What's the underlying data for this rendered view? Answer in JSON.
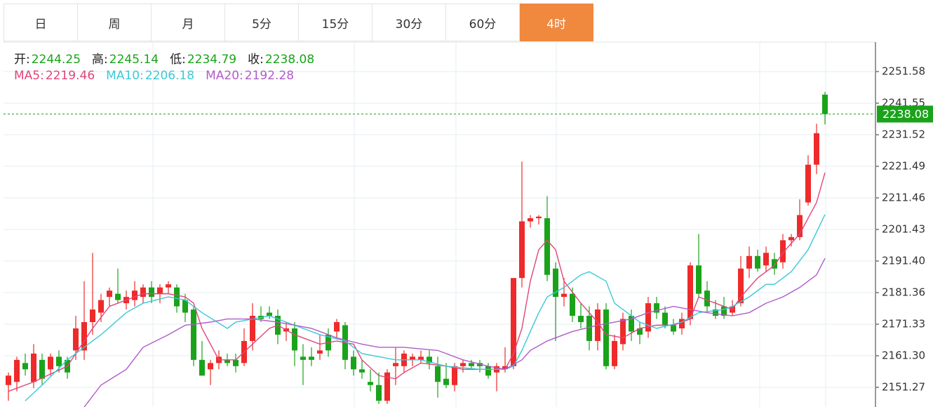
{
  "tabs": [
    "日",
    "周",
    "月",
    "5分",
    "15分",
    "30分",
    "60分",
    "4时"
  ],
  "active_tab": 7,
  "ohlc_labels": [
    "开:",
    "高:",
    "低:",
    "收:"
  ],
  "chart_data": {
    "type": "candlestick",
    "up_color": "#ee2a2a",
    "down_color": "#1aa31a",
    "grid": true,
    "ylim": [
      2145.03,
      2260.94
    ],
    "yticks": [
      2251.58,
      2241.55,
      2231.52,
      2221.49,
      2211.46,
      2201.43,
      {
        "value": 2191.4,
        "label": "2191.40"
      },
      2181.36,
      2171.33,
      {
        "value": 2161.3,
        "label": "2161.30"
      },
      2151.27
    ],
    "candles": [
      [
        2152,
        2156,
        2147,
        2155
      ],
      [
        2153,
        2161,
        2150,
        2160
      ],
      [
        2159,
        2162,
        2155,
        2157
      ],
      [
        2153,
        2165,
        2151,
        2162
      ],
      [
        2160,
        2162,
        2152,
        2154
      ],
      [
        2157,
        2162,
        2155,
        2161
      ],
      [
        2161,
        2163,
        2156,
        2158
      ],
      [
        2160,
        2161,
        2154,
        2156
      ],
      [
        2163,
        2174,
        2160,
        2170
      ],
      [
        2163,
        2185,
        2160,
        2172
      ],
      [
        2172,
        2194,
        2168,
        2176
      ],
      [
        2175,
        2181,
        2172,
        2179
      ],
      [
        2180,
        2183,
        2177,
        2182
      ],
      [
        2181,
        2189,
        2178,
        2179
      ],
      [
        2178,
        2182,
        2176,
        2180
      ],
      [
        2179,
        2185,
        2177,
        2182
      ],
      [
        2180,
        2184,
        2178,
        2183
      ],
      [
        2183,
        2185,
        2178,
        2180
      ],
      [
        2181,
        2184,
        2178,
        2183
      ],
      [
        2183,
        2185,
        2181,
        2184
      ],
      [
        2183,
        2184,
        2175,
        2177
      ],
      [
        2179,
        2181,
        2172,
        2175
      ],
      [
        2176,
        2177,
        2158,
        2160
      ],
      [
        2160,
        2166,
        2155,
        2155
      ],
      [
        2157,
        2160,
        2152,
        2159
      ],
      [
        2159,
        2163,
        2157,
        2161
      ],
      [
        2160,
        2162,
        2158,
        2159
      ],
      [
        2160,
        2162,
        2156,
        2158
      ],
      [
        2159,
        2170,
        2158,
        2166
      ],
      [
        2166,
        2178,
        2163,
        2174
      ],
      [
        2174,
        2177,
        2172,
        2173
      ],
      [
        2175,
        2177,
        2173,
        2174
      ],
      [
        2174,
        2176,
        2165,
        2168
      ],
      [
        2169,
        2172,
        2166,
        2170
      ],
      [
        2170,
        2172,
        2158,
        2163
      ],
      [
        2161,
        2165,
        2152,
        2160
      ],
      [
        2161,
        2164,
        2158,
        2160
      ],
      [
        2162,
        2168,
        2160,
        2163
      ],
      [
        2168,
        2170,
        2161,
        2163
      ],
      [
        2169,
        2173,
        2167,
        2172
      ],
      [
        2171,
        2172,
        2157,
        2160
      ],
      [
        2161,
        2163,
        2155,
        2157
      ],
      [
        2157,
        2160,
        2154,
        2156
      ],
      [
        2153,
        2157,
        2150,
        2152
      ],
      [
        2152,
        2156,
        2146,
        2147
      ],
      [
        2147,
        2157,
        2146,
        2156
      ],
      [
        2158,
        2164,
        2152,
        2159
      ],
      [
        2158,
        2163,
        2156,
        2162
      ],
      [
        2160,
        2162,
        2158,
        2161
      ],
      [
        2160,
        2163,
        2159,
        2161
      ],
      [
        2161,
        2163,
        2157,
        2159
      ],
      [
        2158,
        2161,
        2148,
        2153
      ],
      [
        2154,
        2159,
        2151,
        2152
      ],
      [
        2152,
        2159,
        2150,
        2158
      ],
      [
        2158,
        2160,
        2156,
        2159
      ],
      [
        2159,
        2160,
        2157,
        2158
      ],
      [
        2159,
        2160,
        2156,
        2158
      ],
      [
        2158,
        2159,
        2154,
        2155
      ],
      [
        2156,
        2159,
        2150,
        2158
      ],
      [
        2157,
        2164,
        2156,
        2158
      ],
      [
        2158,
        2186,
        2157,
        2186
      ],
      [
        2186,
        2223,
        2183,
        2204
      ],
      [
        2204,
        2206,
        2202,
        2205
      ],
      [
        2205,
        2206,
        2203,
        2205.5
      ],
      [
        2205,
        2212,
        2185,
        2187
      ],
      [
        2189,
        2191,
        2166,
        2180
      ],
      [
        2180,
        2186,
        2177,
        2181
      ],
      [
        2181,
        2183,
        2172,
        2174
      ],
      [
        2174,
        2178,
        2170,
        2172
      ],
      [
        2174,
        2177,
        2163,
        2166
      ],
      [
        2166,
        2178,
        2163,
        2176
      ],
      [
        2176,
        2178,
        2157,
        2158
      ],
      [
        2158,
        2168,
        2157,
        2166
      ],
      [
        2165,
        2175,
        2163,
        2173
      ],
      [
        2174,
        2176,
        2166,
        2169
      ],
      [
        2170,
        2172,
        2165,
        2168
      ],
      [
        2169,
        2180,
        2167,
        2178
      ],
      [
        2178,
        2180,
        2173,
        2175
      ],
      [
        2175,
        2177,
        2170,
        2171
      ],
      [
        2171,
        2173,
        2168,
        2169
      ],
      [
        2170,
        2175,
        2168,
        2173
      ],
      [
        2173,
        2191,
        2171,
        2190
      ],
      [
        2190,
        2200,
        2180,
        2181
      ],
      [
        2182,
        2185,
        2175,
        2177
      ],
      [
        2176,
        2179,
        2173,
        2174
      ],
      [
        2177,
        2180,
        2173,
        2174
      ],
      [
        2175,
        2179,
        2174,
        2177
      ],
      [
        2178,
        2193,
        2177,
        2189
      ],
      [
        2189,
        2196,
        2186,
        2193
      ],
      [
        2193,
        2195,
        2188,
        2189
      ],
      [
        2190,
        2196,
        2188,
        2194
      ],
      [
        2192,
        2194,
        2187,
        2189
      ],
      [
        2191,
        2200,
        2189,
        2198
      ],
      [
        2198,
        2200,
        2196,
        2199
      ],
      [
        2199,
        2211,
        2198,
        2206
      ],
      [
        2210,
        2225,
        2209,
        2222
      ],
      [
        2222,
        2235,
        2219,
        2232
      ],
      [
        2244.25,
        2245.14,
        2234.79,
        2238.08
      ]
    ],
    "ma": [
      {
        "name": "MA5:",
        "color": "#e0457b",
        "x": [
          0,
          3,
          7,
          10,
          12,
          16,
          19,
          21,
          22,
          23,
          25,
          27,
          29,
          31,
          32,
          34,
          37,
          39,
          41,
          42,
          44,
          46,
          47,
          49,
          52,
          54,
          57,
          59,
          60,
          61,
          62,
          63,
          64,
          65,
          66,
          68,
          70,
          71,
          73,
          75,
          77,
          79,
          81,
          82,
          84,
          86,
          87,
          89,
          91,
          92,
          94,
          96,
          97
        ],
        "values": [
          2150,
          2153,
          2158,
          2170,
          2177,
          2181,
          2181,
          2180,
          2178,
          2170,
          2160,
          2160,
          2165,
          2170,
          2171,
          2168,
          2165,
          2166,
          2165,
          2160,
          2155,
          2154,
          2156,
          2159,
          2158,
          2157,
          2157,
          2157,
          2162,
          2170,
          2185,
          2195,
          2198,
          2195,
          2185,
          2178,
          2172,
          2168,
          2167,
          2170,
          2171,
          2171,
          2173,
          2180,
          2178,
          2176,
          2180,
          2186,
          2190,
          2194,
          2200,
          2210,
          2219.46
        ]
      },
      {
        "name": "MA10:",
        "color": "#3cc8d8",
        "x": [
          2,
          4,
          7,
          11,
          14,
          16,
          19,
          21,
          23,
          26,
          27,
          31,
          34,
          37,
          40,
          42,
          46,
          49,
          52,
          56,
          59,
          60,
          61,
          63,
          64,
          66,
          68,
          69,
          71,
          72,
          75,
          77,
          80,
          82,
          85,
          86,
          88,
          90,
          91,
          93,
          95,
          97
        ],
        "values": [
          2147,
          2152,
          2160,
          2168,
          2175,
          2178,
          2180,
          2179,
          2175,
          2170,
          2172,
          2174,
          2171,
          2168,
          2166,
          2162,
          2160,
          2160,
          2158,
          2157,
          2157,
          2158,
          2163,
          2175,
          2180,
          2183,
          2187,
          2188,
          2185,
          2178,
          2172,
          2170,
          2172,
          2175,
          2176,
          2177,
          2180,
          2184,
          2184,
          2188,
          2195,
          2206.18
        ]
      },
      {
        "name": "MA20:",
        "color": "#b05cc8",
        "x": [
          9,
          11,
          14,
          16,
          19,
          21,
          24,
          26,
          29,
          32,
          36,
          39,
          42,
          44,
          47,
          51,
          54,
          57,
          59,
          61,
          62,
          64,
          67,
          70,
          72,
          74,
          76,
          79,
          81,
          83,
          86,
          88,
          90,
          92,
          94,
          96,
          97
        ],
        "values": [
          2145,
          2152,
          2157,
          2164,
          2168,
          2171,
          2172,
          2173,
          2173,
          2172,
          2170,
          2167,
          2165,
          2164,
          2164,
          2163,
          2160,
          2158,
          2157,
          2160,
          2163,
          2166,
          2169,
          2171,
          2172,
          2173,
          2175,
          2177,
          2176,
          2175,
          2174,
          2175,
          2178,
          2180,
          2183,
          2187,
          2192.28
        ]
      }
    ]
  }
}
